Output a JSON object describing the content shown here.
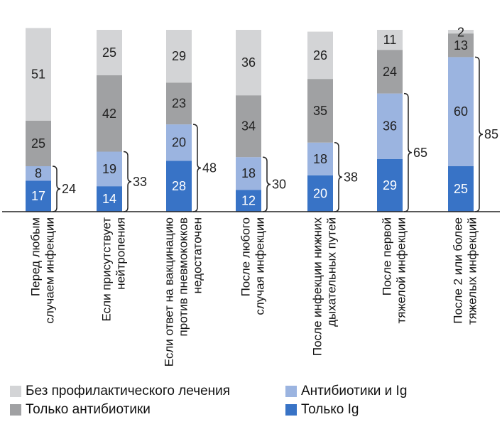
{
  "colors": {
    "none": "#d3d4d6",
    "antibiotics": "#a0a1a3",
    "both": "#9bb4e0",
    "ig": "#3873c6",
    "light_text": "#ffffff",
    "dark_text": "#222222"
  },
  "chart_data": {
    "type": "bar",
    "stacked": true,
    "categories": [
      [
        "Перед любым",
        "случаем инфекции"
      ],
      [
        "Если присутствует",
        "нейтропения"
      ],
      [
        "Если ответ на вакцинацию",
        "против пневмококков",
        "недостаточен"
      ],
      [
        "После любого",
        "случая инфекции"
      ],
      [
        "После инфекции нижних",
        "дыхательных путей"
      ],
      [
        "После первой",
        "тяжелой инфекции"
      ],
      [
        "После 2 или более",
        "тяжелых инфекций"
      ]
    ],
    "series": [
      {
        "key": "ig",
        "name": "Только Ig",
        "values": [
          17,
          14,
          28,
          12,
          20,
          29,
          25
        ]
      },
      {
        "key": "both",
        "name": "Антибиотики и Ig",
        "values": [
          8,
          19,
          20,
          18,
          18,
          36,
          60
        ]
      },
      {
        "key": "antibiotics",
        "name": "Только антибиотики",
        "values": [
          25,
          42,
          23,
          34,
          35,
          24,
          13
        ]
      },
      {
        "key": "none",
        "name": "Без профилактического лечения",
        "values": [
          51,
          25,
          29,
          36,
          26,
          11,
          2
        ]
      }
    ],
    "ig_totals": [
      24,
      33,
      48,
      30,
      38,
      65,
      85
    ],
    "ylim": [
      0,
      100
    ]
  },
  "legend": {
    "none": "Без профилактического лечения",
    "antibiotics": "Только антибиотики",
    "both": "Антибиотики и Ig",
    "ig": "Только Ig"
  }
}
